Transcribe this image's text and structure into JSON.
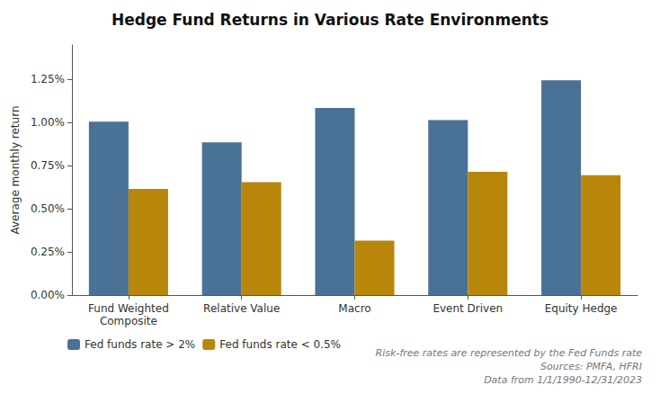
{
  "chart_data": {
    "type": "bar",
    "title": "Hedge Fund Returns in Various Rate Environments",
    "categories": [
      "Fund Weighted\nComposite",
      "Relative Value",
      "Macro",
      "Event Driven",
      "Equity Hedge"
    ],
    "series": [
      {
        "name": "Fed funds rate > 2%",
        "color": "#4a7196",
        "values": [
          0.01005,
          0.00885,
          0.01085,
          0.01015,
          0.01245
        ]
      },
      {
        "name": "Fed funds rate < 0.5%",
        "color": "#b8860b",
        "values": [
          0.00615,
          0.00655,
          0.00315,
          0.00715,
          0.00695
        ]
      }
    ],
    "ylabel": "Average monthly return",
    "ylim": [
      0,
      0.0145
    ],
    "yticks": [
      {
        "value": 0.0,
        "label": "0.00%"
      },
      {
        "value": 0.0025,
        "label": "0.25%"
      },
      {
        "value": 0.005,
        "label": "0.50%"
      },
      {
        "value": 0.0075,
        "label": "0.75%"
      },
      {
        "value": 0.01,
        "label": "1.00%"
      },
      {
        "value": 0.0125,
        "label": "1.25%"
      }
    ],
    "annotations": [
      "Risk-free rates are represented by the Fed Funds rate",
      "Sources: PMFA, HFRI",
      "Data from 1/1/1990-12/31/2023"
    ],
    "legend": "lower left",
    "grid": false
  }
}
